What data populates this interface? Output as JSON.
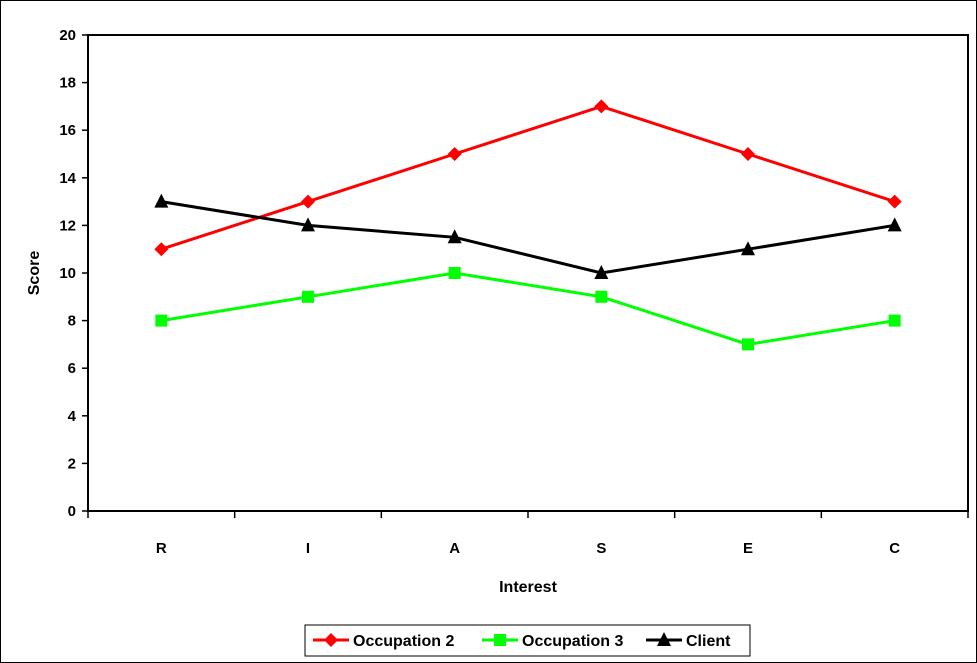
{
  "chart_data": {
    "type": "line",
    "title": "",
    "xlabel": "Interest",
    "ylabel": "Score",
    "categories": [
      "R",
      "I",
      "A",
      "S",
      "E",
      "C"
    ],
    "ylim": [
      0,
      20
    ],
    "yticks": [
      "0",
      "2",
      "4",
      "6",
      "8",
      "10",
      "12",
      "14",
      "16",
      "18",
      "20"
    ],
    "grid": false,
    "legend_position": "bottom",
    "series": [
      {
        "name": "Occupation 2",
        "values": [
          11,
          13,
          15,
          17,
          15,
          13
        ],
        "color": "#ff0000",
        "marker": "diamond"
      },
      {
        "name": "Occupation 3",
        "values": [
          8,
          9,
          10,
          9,
          7,
          8
        ],
        "color": "#00ff00",
        "marker": "square"
      },
      {
        "name": "Client",
        "values": [
          13,
          12,
          11.5,
          10,
          11,
          12
        ],
        "color": "#000000",
        "marker": "triangle"
      }
    ]
  }
}
